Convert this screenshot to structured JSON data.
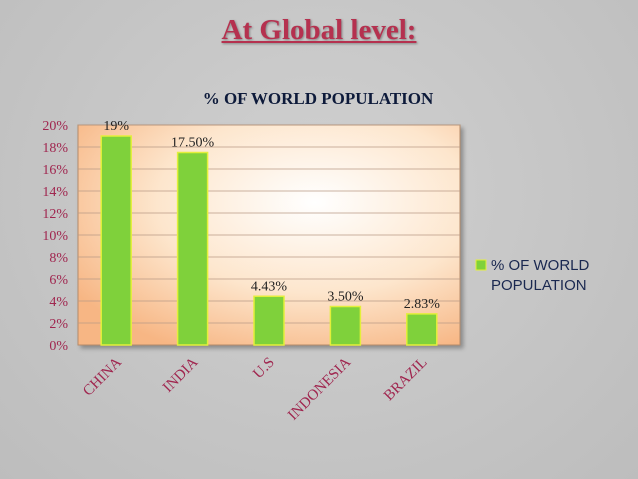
{
  "slide": {
    "heading": "At Global level:"
  },
  "colors": {
    "bar": "#7fd13b",
    "bar_border": "#e3ef3a",
    "axis_text": "#a0264f",
    "title_text": "#0d1a3a"
  },
  "chart_data": {
    "type": "bar",
    "title": "% OF WORLD POPULATION",
    "categories": [
      "CHINA",
      "INDIA",
      "U.S",
      "INDONESIA",
      "BRAZIL"
    ],
    "series": [
      {
        "name": "% OF WORLD POPULATION",
        "values": [
          19,
          17.5,
          4.43,
          3.5,
          2.83
        ],
        "labels": [
          "19%",
          "17.50%",
          "4.43%",
          "3.50%",
          "2.83%"
        ]
      }
    ],
    "ylim": [
      0,
      20
    ],
    "yticks": [
      "0%",
      "2%",
      "4%",
      "6%",
      "8%",
      "10%",
      "12%",
      "14%",
      "16%",
      "18%",
      "20%"
    ],
    "xlabel": "",
    "ylabel": "",
    "grid": true,
    "legend": {
      "position": "right",
      "lines": [
        "% OF WORLD",
        "POPULATION"
      ]
    }
  }
}
